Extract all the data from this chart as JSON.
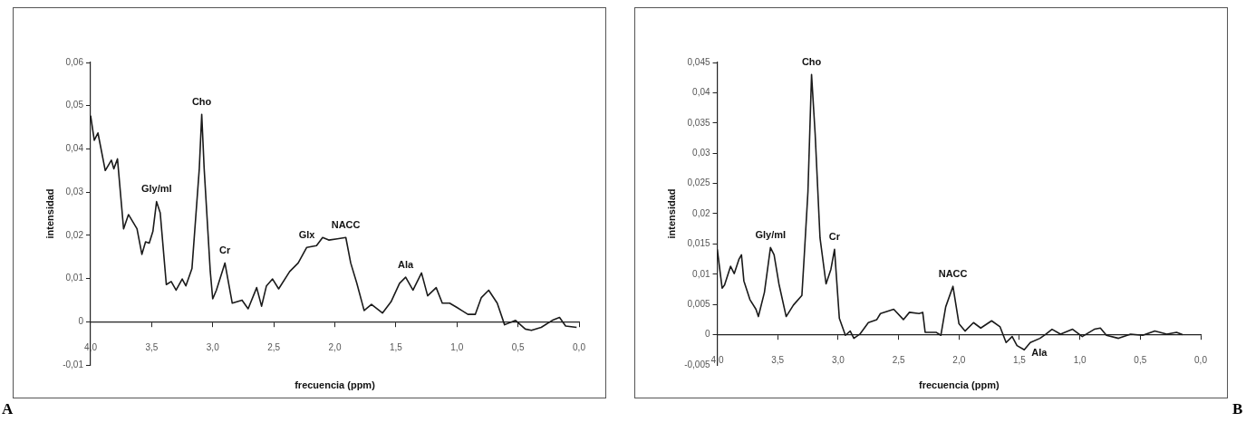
{
  "chart_data": [
    {
      "type": "line",
      "xlabel": "frecuencia (ppm)",
      "ylabel": "intensidad",
      "xlim": [
        4,
        0
      ],
      "ylim": [
        -0.01,
        0.06
      ],
      "grid": false,
      "marker": "none",
      "line_style": "solid",
      "legend": false,
      "xticks": [
        {
          "value": 4,
          "label": "4,0"
        },
        {
          "value": 3.5,
          "label": "3,5"
        },
        {
          "value": 3,
          "label": "3,0"
        },
        {
          "value": 2.5,
          "label": "2,5"
        },
        {
          "value": 2,
          "label": "2,0"
        },
        {
          "value": 1.5,
          "label": "1,5"
        },
        {
          "value": 1,
          "label": "1,0"
        },
        {
          "value": 0.5,
          "label": "0,5"
        },
        {
          "value": 0,
          "label": "0,0"
        }
      ],
      "yticks": [
        {
          "value": -0.01,
          "label": "-0,01"
        },
        0,
        {
          "value": 0.01,
          "label": "0,01"
        },
        {
          "value": 0.02,
          "label": "0,02"
        },
        {
          "value": 0.03,
          "label": "0,03"
        },
        {
          "value": 0.04,
          "label": "0,04"
        },
        {
          "value": 0.05,
          "label": "0,05"
        },
        {
          "value": 0.06,
          "label": "0,06"
        }
      ],
      "series": [
        {
          "color": "#1a1a1a",
          "x": [
            4.0,
            3.97,
            3.94,
            3.88,
            3.83,
            3.81,
            3.78,
            3.73,
            3.69,
            3.62,
            3.58,
            3.55,
            3.52,
            3.49,
            3.46,
            3.43,
            3.38,
            3.34,
            3.3,
            3.25,
            3.22,
            3.17,
            3.11,
            3.09,
            3.07,
            3.02,
            3.0,
            2.97,
            2.9,
            2.84,
            2.76,
            2.71,
            2.64,
            2.6,
            2.56,
            2.51,
            2.46,
            2.37,
            2.3,
            2.23,
            2.15,
            2.1,
            2.05,
            1.98,
            1.91,
            1.87,
            1.82,
            1.76,
            1.7,
            1.61,
            1.54,
            1.47,
            1.42,
            1.36,
            1.29,
            1.24,
            1.17,
            1.12,
            1.06,
            1.0,
            0.91,
            0.85,
            0.8,
            0.74,
            0.67,
            0.61,
            0.52,
            0.44,
            0.39,
            0.31,
            0.22,
            0.16,
            0.11,
            0.02
          ],
          "values": [
            0.0477,
            0.042,
            0.0437,
            0.035,
            0.0374,
            0.0354,
            0.0377,
            0.0215,
            0.0248,
            0.0215,
            0.0156,
            0.0185,
            0.0182,
            0.0209,
            0.0278,
            0.0252,
            0.0086,
            0.0093,
            0.0073,
            0.0099,
            0.0083,
            0.0123,
            0.0354,
            0.048,
            0.0354,
            0.0116,
            0.0053,
            0.0073,
            0.0136,
            0.0043,
            0.005,
            0.003,
            0.0079,
            0.0036,
            0.0083,
            0.0099,
            0.0076,
            0.0116,
            0.0136,
            0.0172,
            0.0176,
            0.0195,
            0.0189,
            0.0192,
            0.0195,
            0.0136,
            0.0089,
            0.0026,
            0.004,
            0.002,
            0.0046,
            0.0089,
            0.0103,
            0.0073,
            0.0113,
            0.006,
            0.0079,
            0.0043,
            0.0043,
            0.0033,
            0.0017,
            0.0017,
            0.0056,
            0.0073,
            0.0043,
            -0.0007,
            0.0003,
            -0.0017,
            -0.002,
            -0.0013,
            0.0003,
            0.001,
            -0.001,
            -0.0013
          ]
        }
      ],
      "annotations": [
        {
          "text": "Cho",
          "x": 3.09,
          "y": 0.048
        },
        {
          "text": "Gly/mI",
          "x": 3.46,
          "y": 0.0278
        },
        {
          "text": "Cr",
          "x": 2.9,
          "y": 0.0136
        },
        {
          "text": "Glx",
          "x": 2.23,
          "y": 0.0172
        },
        {
          "text": "NACC",
          "x": 1.91,
          "y": 0.0195
        },
        {
          "text": "Ala",
          "x": 1.42,
          "y": 0.0103
        },
        "A"
      ]
    },
    {
      "type": "line",
      "xlabel": "frecuencia (ppm)",
      "ylabel": "intensidad",
      "xlim": [
        4,
        0
      ],
      "ylim": [
        -0.005,
        0.045
      ],
      "grid": false,
      "marker": "none",
      "line_style": "solid",
      "legend": false,
      "xticks": [
        {
          "value": 4,
          "label": "4,0"
        },
        {
          "value": 3.5,
          "label": "3,5"
        },
        {
          "value": 3,
          "label": "3,0"
        },
        {
          "value": 2.5,
          "label": "2,5"
        },
        {
          "value": 2,
          "label": "2,0"
        },
        {
          "value": 1.5,
          "label": "1,5"
        },
        {
          "value": 1,
          "label": "1,0"
        },
        {
          "value": 0.5,
          "label": "0,5"
        },
        {
          "value": 0,
          "label": "0,0"
        }
      ],
      "yticks": [
        {
          "value": -0.005,
          "label": "-0,005"
        },
        0,
        {
          "value": 0.005,
          "label": "0,005"
        },
        {
          "value": 0.01,
          "label": "0,01"
        },
        {
          "value": 0.015,
          "label": "0,015"
        },
        {
          "value": 0.02,
          "label": "0,02"
        },
        {
          "value": 0.025,
          "label": "0,025"
        },
        {
          "value": 0.03,
          "label": "0,03"
        },
        {
          "value": 0.035,
          "label": "0,035"
        },
        {
          "value": 0.04,
          "label": "0,04"
        },
        {
          "value": 0.045,
          "label": "0,045"
        }
      ],
      "series": [
        {
          "color": "#1a1a1a",
          "x": [
            4.0,
            3.96,
            3.94,
            3.89,
            3.86,
            3.82,
            3.8,
            3.78,
            3.73,
            3.68,
            3.66,
            3.61,
            3.56,
            3.53,
            3.49,
            3.43,
            3.37,
            3.3,
            3.28,
            3.25,
            3.22,
            3.19,
            3.15,
            3.1,
            3.06,
            3.03,
            2.99,
            2.94,
            2.9,
            2.87,
            2.82,
            2.75,
            2.68,
            2.65,
            2.54,
            2.46,
            2.41,
            2.33,
            2.3,
            2.28,
            2.19,
            2.15,
            2.11,
            2.05,
            2.0,
            1.95,
            1.88,
            1.82,
            1.73,
            1.66,
            1.61,
            1.56,
            1.52,
            1.46,
            1.41,
            1.33,
            1.28,
            1.23,
            1.16,
            1.06,
            0.98,
            0.88,
            0.83,
            0.78,
            0.68,
            0.58,
            0.48,
            0.38,
            0.28,
            0.2,
            0.15
          ],
          "values": [
            0.0141,
            0.0077,
            0.0082,
            0.0113,
            0.0101,
            0.0125,
            0.0132,
            0.0089,
            0.0058,
            0.0042,
            0.003,
            0.007,
            0.0144,
            0.0132,
            0.0084,
            0.003,
            0.0049,
            0.0065,
            0.0132,
            0.0236,
            0.043,
            0.0331,
            0.016,
            0.0084,
            0.0108,
            0.0141,
            0.0027,
            -0.0001,
            0.0006,
            -0.0006,
            0.0001,
            0.002,
            0.0025,
            0.0035,
            0.0042,
            0.0025,
            0.0037,
            0.0035,
            0.0037,
            0.0004,
            0.0004,
            -0.0001,
            0.0046,
            0.008,
            0.0018,
            0.0006,
            0.002,
            0.0011,
            0.0023,
            0.0013,
            -0.0013,
            -0.0003,
            -0.0018,
            -0.0025,
            -0.0013,
            -0.0006,
            0.0001,
            0.0009,
            0.0001,
            0.0009,
            -0.0003,
            0.0009,
            0.0011,
            -0.0001,
            -0.0006,
            0.0001,
            -0.0001,
            0.0006,
            0.0001,
            0.0004,
            0.0
          ]
        }
      ],
      "annotations": [
        {
          "text": "Cho",
          "x": 3.22,
          "y": 0.043
        },
        {
          "text": "Gly/mI",
          "x": 3.56,
          "y": 0.0144
        },
        {
          "text": "Cr",
          "x": 3.03,
          "y": 0.0141
        },
        {
          "text": "NACC",
          "x": 2.05,
          "y": 0.008
        },
        {
          "text": "Ala",
          "x": 1.46,
          "y": -0.0025
        },
        "B"
      ]
    }
  ]
}
